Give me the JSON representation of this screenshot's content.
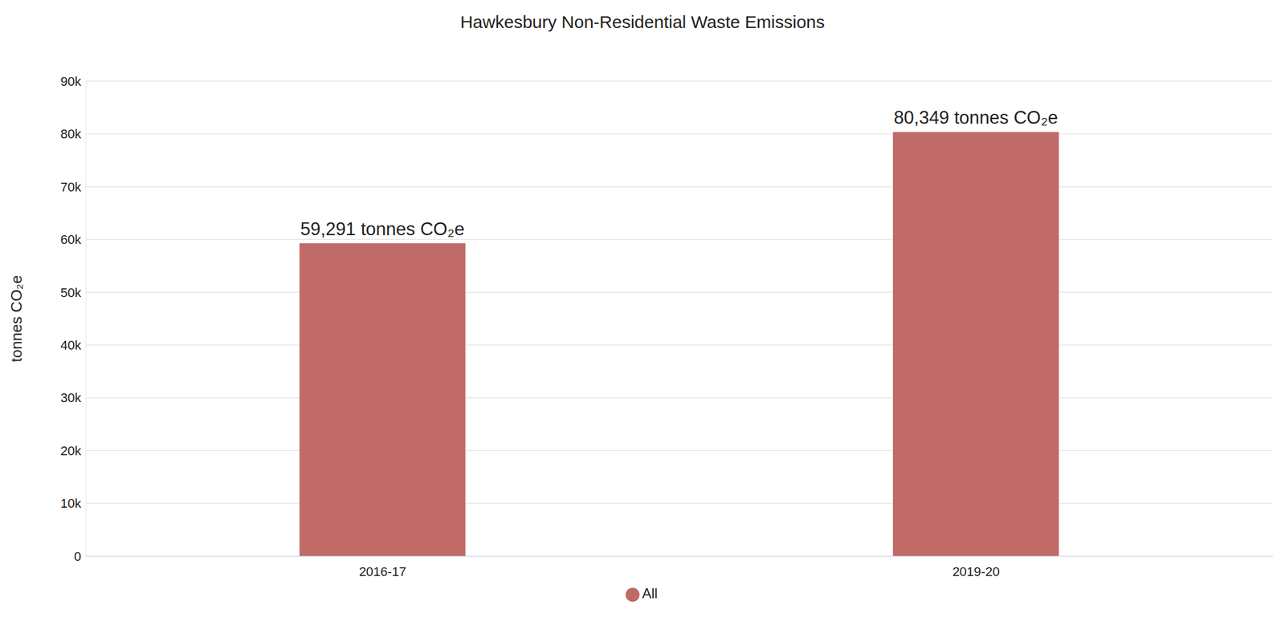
{
  "chart_data": {
    "type": "bar",
    "title": "Hawkesbury Non-Residential Waste Emissions",
    "y_label": "tonnes CO₂e",
    "categories": [
      "2016-17",
      "2019-20"
    ],
    "series": [
      {
        "name": "All",
        "color": "#c06a68",
        "values": [
          59291,
          80349
        ],
        "value_labels": [
          "59,291 tonnes CO₂e",
          "80,349 tonnes CO₂e"
        ]
      }
    ],
    "ylim": [
      0,
      90000
    ],
    "yticks": [
      0,
      {
        "value": 10000,
        "label": "10k"
      },
      {
        "value": 20000,
        "label": "20k"
      },
      {
        "value": 30000,
        "label": "30k"
      },
      {
        "value": 40000,
        "label": "40k"
      },
      {
        "value": 50000,
        "label": "50k"
      },
      {
        "value": 60000,
        "label": "60k"
      },
      {
        "value": 70000,
        "label": "70k"
      },
      {
        "value": 80000,
        "label": "80k"
      },
      {
        "value": 90000,
        "label": "90k"
      }
    ],
    "grid": true,
    "legend": "bottom",
    "data_labels": true
  }
}
